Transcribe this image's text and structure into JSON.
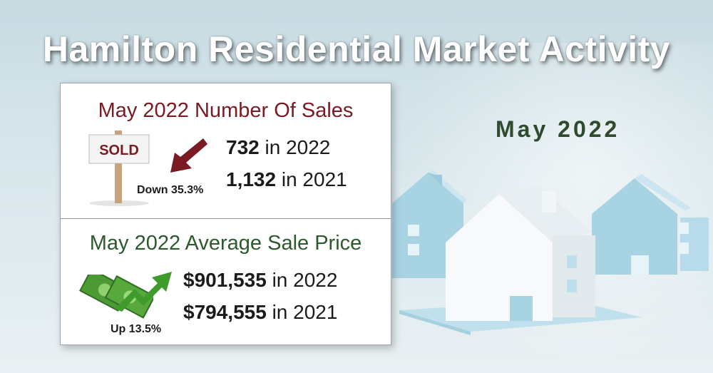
{
  "header": {
    "title": "Hamilton Residential Market Activity"
  },
  "side_label": "May 2022",
  "sales": {
    "title": "May 2022 Number Of Sales",
    "sign_text": "SOLD",
    "change_text": "Down 35.3%",
    "current_value": "732",
    "current_suffix": " in 2022",
    "previous_value": "1,132",
    "previous_suffix": " in 2021",
    "arrow_color": "#7b1a22"
  },
  "price": {
    "title": "May 2022 Average Sale Price",
    "change_text": "Up 13.5%",
    "current_value": "$901,535",
    "current_suffix": " in 2022",
    "previous_value": "$794,555",
    "previous_suffix": " in 2021",
    "arrow_color": "#3f9b2c"
  },
  "icons": [
    "sold-sign-icon",
    "down-arrow-icon",
    "money-icon",
    "up-arrow-icon",
    "house-illustration"
  ]
}
